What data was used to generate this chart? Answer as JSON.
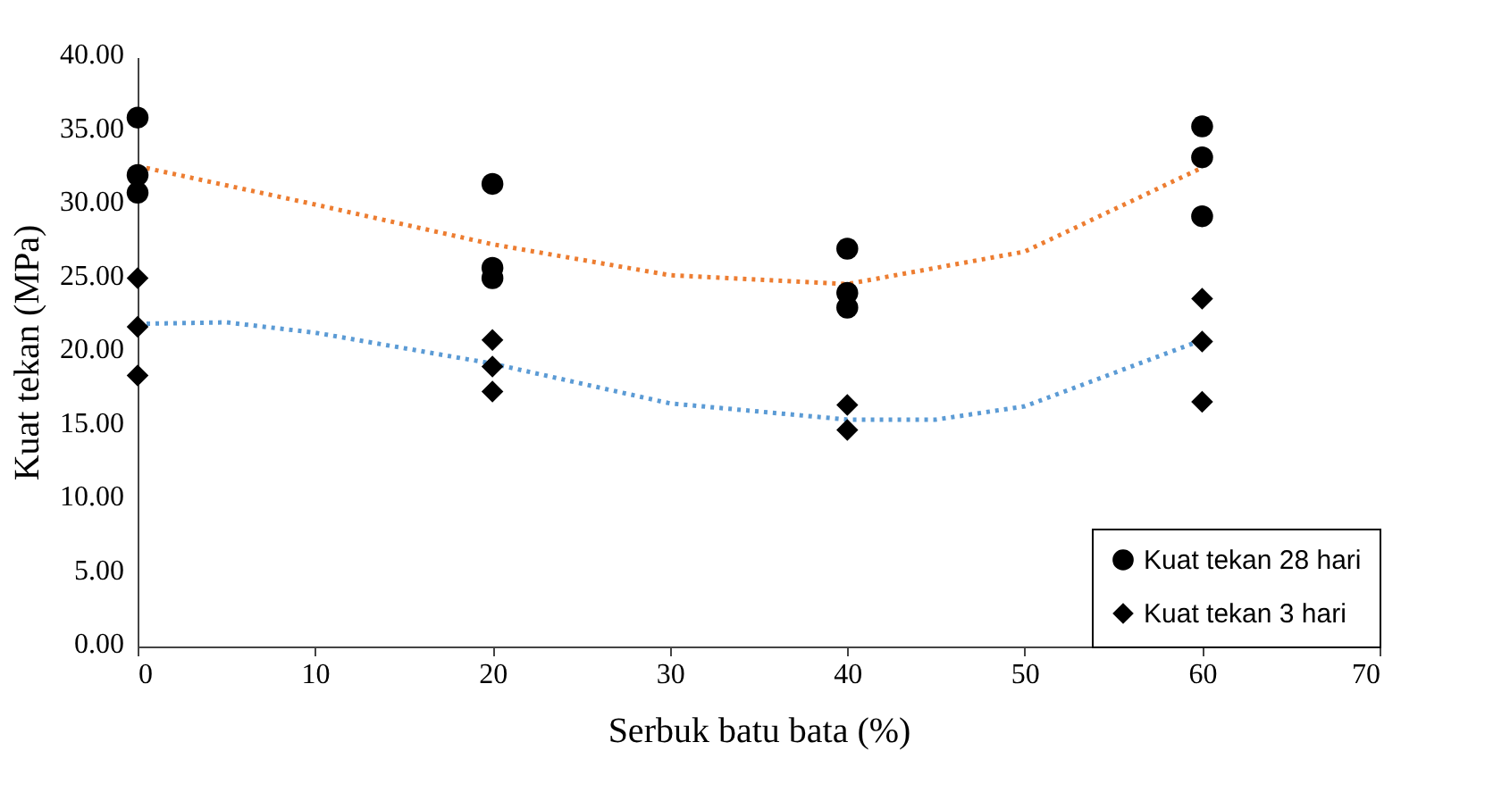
{
  "chart_data": {
    "type": "scatter",
    "xlabel": "Serbuk batu bata (%)",
    "ylabel": "Kuat tekan (MPa)",
    "xlim": [
      0,
      70
    ],
    "xticks": [
      0,
      10,
      20,
      30,
      40,
      50,
      60,
      70
    ],
    "ylim": [
      0,
      40
    ],
    "yticks": [
      {
        "value": 0,
        "label": "0.00"
      },
      {
        "value": 5,
        "label": "5.00"
      },
      {
        "value": 10,
        "label": "10.00"
      },
      {
        "value": 15,
        "label": "15.00"
      },
      {
        "value": 20,
        "label": "20.00"
      },
      {
        "value": 25,
        "label": "25.00"
      },
      {
        "value": 30,
        "label": "30.00"
      },
      {
        "value": 35,
        "label": "35.00"
      },
      {
        "value": 40,
        "label": "40.00"
      }
    ],
    "grid": false,
    "legend": "bottom right",
    "series": [
      {
        "name": "Kuat tekan 28 hari",
        "color": "#000000",
        "marker": "circle",
        "x": [
          0,
          0,
          0,
          20,
          20,
          20,
          40,
          40,
          40,
          60,
          60,
          60
        ],
        "values": [
          35.9,
          32.0,
          30.8,
          31.4,
          25.7,
          25.0,
          27.0,
          24.0,
          23.0,
          35.3,
          33.2,
          29.2
        ]
      },
      {
        "name": "Kuat tekan 3 hari",
        "color": "#000000",
        "marker": "diamond",
        "x": [
          0,
          0,
          0,
          20,
          20,
          20,
          40,
          40,
          60,
          60,
          60
        ],
        "values": [
          25.0,
          21.7,
          18.4,
          20.8,
          19.0,
          17.3,
          16.4,
          14.7,
          23.6,
          20.7,
          16.6
        ]
      },
      {
        "type": "line",
        "color": "#ed7d31",
        "line_style": "dotted",
        "x": [
          0,
          10,
          20,
          30,
          40,
          50,
          60
        ],
        "values": [
          32.6,
          30.0,
          27.3,
          25.2,
          24.6,
          26.8,
          32.5
        ]
      },
      {
        "type": "line",
        "color": "#5b9bd5",
        "line_style": "dotted",
        "x": [
          0,
          5,
          10,
          20,
          30,
          40,
          45,
          50,
          60
        ],
        "values": [
          21.9,
          22.0,
          21.3,
          19.2,
          16.5,
          15.4,
          15.4,
          16.3,
          20.8
        ]
      }
    ]
  }
}
